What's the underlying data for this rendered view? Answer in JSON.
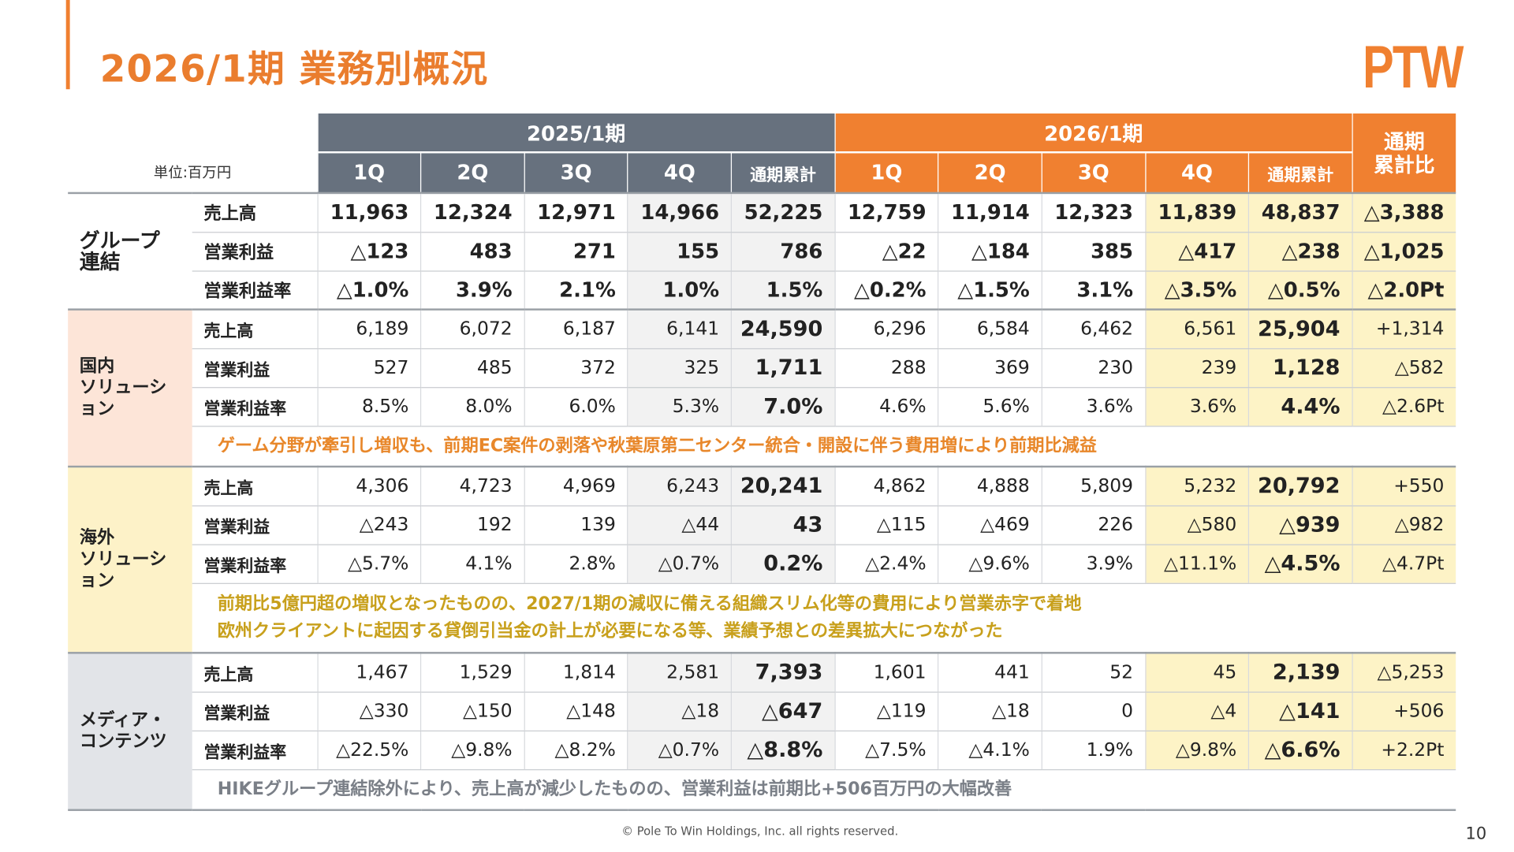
{
  "title": "2026/1期 業務別概況",
  "logo": "PTW",
  "unit": "単位:百万円",
  "header": {
    "fy2025": "2025/1期",
    "fy2026": "2026/1期",
    "compare": "通期\n累計比",
    "cols": [
      "1Q",
      "2Q",
      "3Q",
      "4Q",
      "通期累計",
      "1Q",
      "2Q",
      "3Q",
      "4Q",
      "通期累計"
    ]
  },
  "colors": {
    "gray_header": "#67717e",
    "orange": "#f08030",
    "highlight": "#fdf3c6"
  },
  "sections": [
    {
      "name": "グループ\n連結",
      "bg": "#ffffff",
      "consolidated": true,
      "rows": [
        {
          "label": "売上高",
          "values": [
            "11,963",
            "12,324",
            "12,971",
            "14,966",
            "52,225",
            "12,759",
            "11,914",
            "12,323",
            "11,839",
            "48,837",
            "△3,388"
          ]
        },
        {
          "label": "営業利益",
          "values": [
            "△123",
            "483",
            "271",
            "155",
            "786",
            "△22",
            "△184",
            "385",
            "△417",
            "△238",
            "△1,025"
          ]
        },
        {
          "label": "営業利益率",
          "values": [
            "△1.0%",
            "3.9%",
            "2.1%",
            "1.0%",
            "1.5%",
            "△0.2%",
            "△1.5%",
            "3.1%",
            "△3.5%",
            "△0.5%",
            "△2.0Pt"
          ]
        }
      ],
      "note": [],
      "note_color": ""
    },
    {
      "name": "国内\nソリューション",
      "bg": "#fde5d8",
      "rows": [
        {
          "label": "売上高",
          "values": [
            "6,189",
            "6,072",
            "6,187",
            "6,141",
            "24,590",
            "6,296",
            "6,584",
            "6,462",
            "6,561",
            "25,904",
            "+1,314"
          ]
        },
        {
          "label": "営業利益",
          "values": [
            "527",
            "485",
            "372",
            "325",
            "1,711",
            "288",
            "369",
            "230",
            "239",
            "1,128",
            "△582"
          ]
        },
        {
          "label": "営業利益率",
          "values": [
            "8.5%",
            "8.0%",
            "6.0%",
            "5.3%",
            "7.0%",
            "4.6%",
            "5.6%",
            "3.6%",
            "3.6%",
            "4.4%",
            "△2.6Pt"
          ]
        }
      ],
      "note": [
        "ゲーム分野が牽引し増収も、前期EC案件の剥落や秋葉原第二センター統合・開設に伴う費用増により前期比減益"
      ],
      "note_color": "#e8872a"
    },
    {
      "name": "海外\nソリューション",
      "bg": "#fdf2c8",
      "rows": [
        {
          "label": "売上高",
          "values": [
            "4,306",
            "4,723",
            "4,969",
            "6,243",
            "20,241",
            "4,862",
            "4,888",
            "5,809",
            "5,232",
            "20,792",
            "+550"
          ]
        },
        {
          "label": "営業利益",
          "values": [
            "△243",
            "192",
            "139",
            "△44",
            "43",
            "△115",
            "△469",
            "226",
            "△580",
            "△939",
            "△982"
          ]
        },
        {
          "label": "営業利益率",
          "values": [
            "△5.7%",
            "4.1%",
            "2.8%",
            "△0.7%",
            "0.2%",
            "△2.4%",
            "△9.6%",
            "3.9%",
            "△11.1%",
            "△4.5%",
            "△4.7Pt"
          ]
        }
      ],
      "note": [
        "前期比5億円超の増収となったものの、2027/1期の減収に備える組織スリム化等の費用により営業赤字で着地",
        "欧州クライアントに起因する貸倒引当金の計上が必要になる等、業績予想との差異拡大につながった"
      ],
      "note_color": "#c8a01c"
    },
    {
      "name": "メディア・\nコンテンツ",
      "bg": "#e2e4e8",
      "rows": [
        {
          "label": "売上高",
          "values": [
            "1,467",
            "1,529",
            "1,814",
            "2,581",
            "7,393",
            "1,601",
            "441",
            "52",
            "45",
            "2,139",
            "△5,253"
          ]
        },
        {
          "label": "営業利益",
          "values": [
            "△330",
            "△150",
            "△148",
            "△18",
            "△647",
            "△119",
            "△18",
            "0",
            "△4",
            "△141",
            "+506"
          ]
        },
        {
          "label": "営業利益率",
          "values": [
            "△22.5%",
            "△9.8%",
            "△8.2%",
            "△0.7%",
            "△8.8%",
            "△7.5%",
            "△4.1%",
            "1.9%",
            "△9.8%",
            "△6.6%",
            "+2.2Pt"
          ]
        }
      ],
      "note": [
        "HIKEグループ連結除外により、売上高が減少したものの、営業利益は前期比+506百万円の大幅改善"
      ],
      "note_color": "#7a7f87"
    }
  ],
  "footer": "© Pole To Win Holdings, Inc. all rights reserved.",
  "page_number": "10"
}
